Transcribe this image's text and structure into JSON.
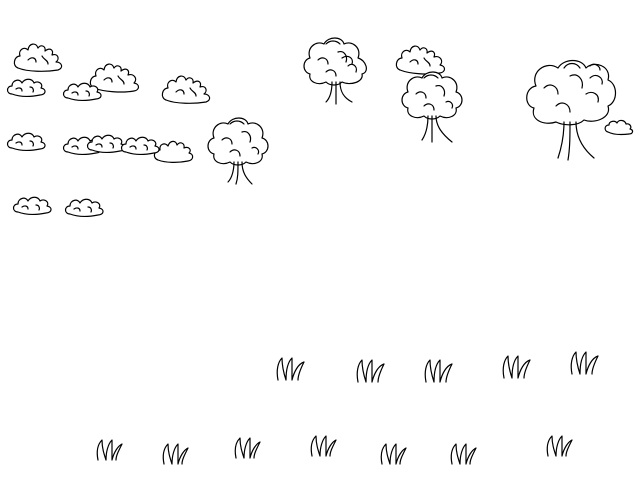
{
  "scene": {
    "background_color": "#ffffff",
    "line_color": "#000000",
    "style": "hand-drawn doodle sprites"
  },
  "sprite_types": {
    "bush": "bush-icon",
    "puff": "cloud-puff-icon",
    "tree": "tree-icon",
    "grass": "grass-tuft-icon"
  }
}
